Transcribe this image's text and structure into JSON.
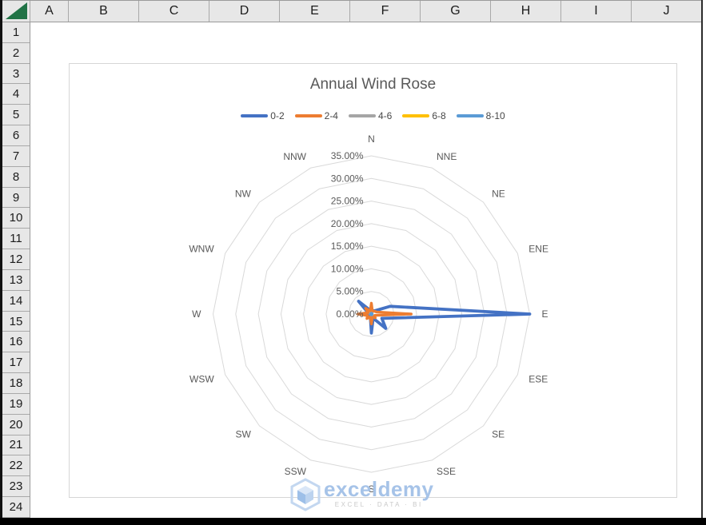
{
  "spreadsheet": {
    "column_headers": [
      "A",
      "B",
      "C",
      "D",
      "E",
      "F",
      "G",
      "H",
      "I",
      "J"
    ],
    "row_headers": [
      "1",
      "2",
      "3",
      "4",
      "5",
      "6",
      "7",
      "8",
      "9",
      "10",
      "11",
      "12",
      "13",
      "14",
      "15",
      "16",
      "17",
      "18",
      "19",
      "20",
      "21",
      "22",
      "23",
      "24"
    ],
    "select_all_triangle_color": "#217346"
  },
  "chart_data": {
    "type": "radar",
    "title": "Annual Wind Rose",
    "legend_position": "top",
    "grid": "concentric-polygons, spokes hidden",
    "categories": [
      "N",
      "NNE",
      "NE",
      "ENE",
      "E",
      "ESE",
      "SE",
      "SSE",
      "S",
      "SSW",
      "SW",
      "WSW",
      "W",
      "WNW",
      "NW",
      "NNW"
    ],
    "series": [
      {
        "name": "0-2",
        "color": "#4472C4",
        "values": [
          1.2,
          0.8,
          1.0,
          4.5,
          35.0,
          2.5,
          4.5,
          1.0,
          4.2,
          0.6,
          0.8,
          0.8,
          2.0,
          0.8,
          4.0,
          1.0
        ]
      },
      {
        "name": "2-4",
        "color": "#ED7D31",
        "values": [
          2.4,
          0.6,
          0.9,
          1.2,
          8.8,
          0.8,
          1.2,
          0.6,
          2.2,
          0.7,
          1.4,
          0.9,
          3.0,
          0.8,
          1.8,
          0.7
        ]
      },
      {
        "name": "4-6",
        "color": "#A5A5A5",
        "values": [
          0.2,
          0.2,
          0.2,
          0.2,
          0.2,
          0.2,
          0.2,
          0.2,
          0.2,
          0.2,
          0.2,
          0.2,
          0.2,
          0.2,
          0.2,
          0.2
        ]
      },
      {
        "name": "6-8",
        "color": "#FFC000",
        "values": [
          0.1,
          0.1,
          0.1,
          0.1,
          0.1,
          0.1,
          0.1,
          0.1,
          0.1,
          0.1,
          0.1,
          0.1,
          0.1,
          0.1,
          0.1,
          0.1
        ]
      },
      {
        "name": "8-10",
        "color": "#5B9BD5",
        "values": [
          0.05,
          0.05,
          0.05,
          0.05,
          0.05,
          0.05,
          0.05,
          0.05,
          0.05,
          0.05,
          0.05,
          0.05,
          0.05,
          0.05,
          0.05,
          0.05
        ]
      }
    ],
    "radial_axis": {
      "min": 0,
      "max": 35,
      "step": 5,
      "unit": "%",
      "labels": [
        "0.00%",
        "5.00%",
        "10.00%",
        "15.00%",
        "20.00%",
        "25.00%",
        "30.00%",
        "35.00%"
      ]
    },
    "values_note": "percent frequencies read from plot; 0-2 series peaks at E = 35.00%"
  },
  "watermark": {
    "brand": "exceldemy",
    "tagline": "EXCEL · DATA · BI"
  }
}
